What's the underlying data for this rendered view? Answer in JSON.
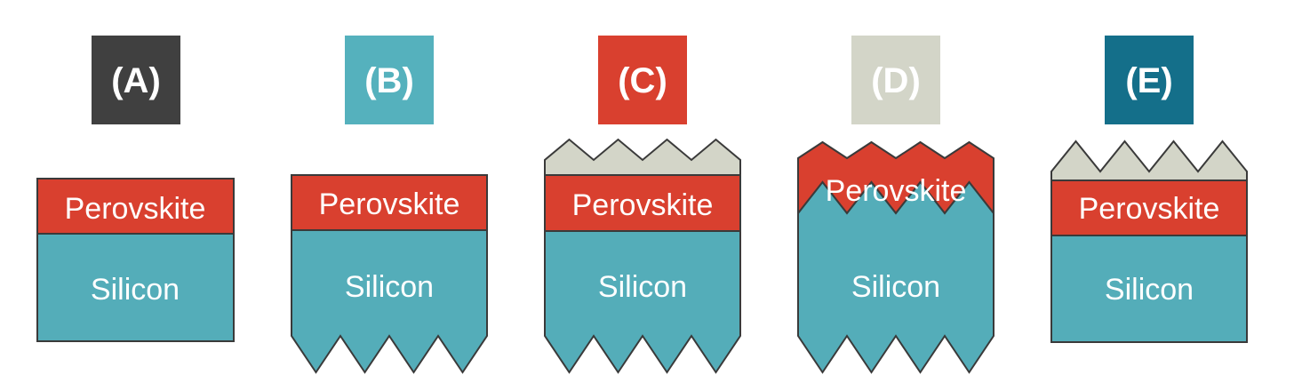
{
  "colors": {
    "perovskite": "#d9402f",
    "silicon": "#54adb9",
    "texture": "#d3d5c8",
    "badge_A": "#404040",
    "badge_B": "#55b1bd",
    "badge_C": "#d9402f",
    "badge_D": "#d3d5c8",
    "badge_E": "#146f8a"
  },
  "panels": [
    {
      "id": "A",
      "label": "(A)",
      "top_layer": "Perovskite",
      "bottom_layer": "Silicon"
    },
    {
      "id": "B",
      "label": "(B)",
      "top_layer": "Perovskite",
      "bottom_layer": "Silicon"
    },
    {
      "id": "C",
      "label": "(C)",
      "top_layer": "Perovskite",
      "bottom_layer": "Silicon"
    },
    {
      "id": "D",
      "label": "(D)",
      "top_layer": "Perovskite",
      "bottom_layer": "Silicon"
    },
    {
      "id": "E",
      "label": "(E)",
      "top_layer": "Perovskite",
      "bottom_layer": "Silicon"
    }
  ]
}
